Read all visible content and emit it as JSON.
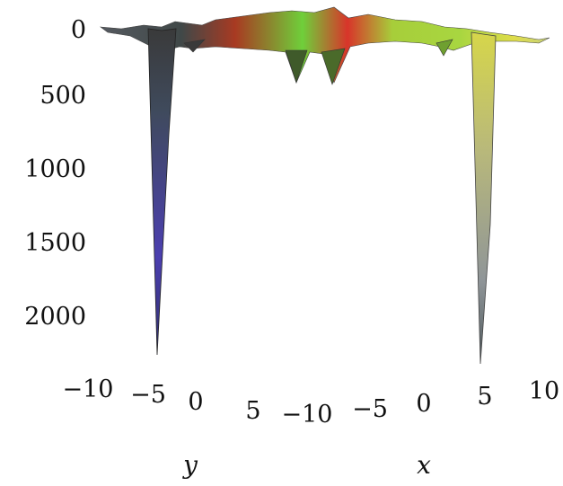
{
  "chart_data": {
    "type": "surface-3d",
    "z_axis": {
      "ticks": [
        "0",
        "500",
        "1000",
        "1500",
        "2000"
      ],
      "values": [
        0,
        500,
        1000,
        1500,
        2000
      ],
      "direction": "downward"
    },
    "y_axis": {
      "label": "y",
      "ticks": [
        "−10",
        "−5",
        "0",
        "5"
      ],
      "values": [
        -10,
        -5,
        0,
        5
      ]
    },
    "x_axis": {
      "label": "x",
      "ticks": [
        "−10",
        "−5",
        "0",
        "5",
        "10"
      ],
      "values": [
        -10,
        -5,
        0,
        5,
        10
      ]
    },
    "features": {
      "left_spike_depth": 2400,
      "right_spike_depth": 2400,
      "middle_dips_depth": 450
    },
    "colormap": [
      "#4a3ab0",
      "#3b3b3b",
      "#b33b1c",
      "#d23a2a",
      "#7bd23a",
      "#c9d23a",
      "#e0e05a",
      "#9a9a9a"
    ]
  }
}
